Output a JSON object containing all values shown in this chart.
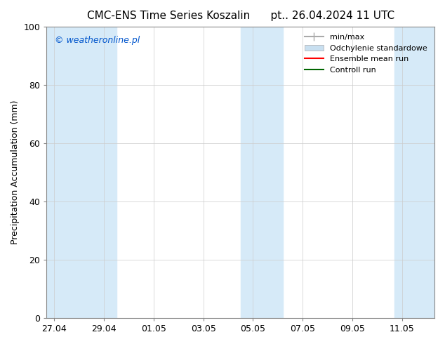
{
  "title": "CMC-ENS Time Series Koszalin      pt.. 26.04.2024 11 UTC",
  "ylabel": "Precipitation Accumulation (mm)",
  "ylim": [
    0,
    100
  ],
  "yticks": [
    0,
    20,
    40,
    60,
    80,
    100
  ],
  "background_color": "#ffffff",
  "plot_bg_color": "#ffffff",
  "watermark_text": "© weatheronline.pl",
  "watermark_color": "#0055cc",
  "legend_entries": [
    "min/max",
    "Odchylenie standardowe",
    "Ensemble mean run",
    "Controll run"
  ],
  "legend_colors": [
    "#aaaaaa",
    "#c8dff0",
    "#ff0000",
    "#006600"
  ],
  "shade_color": "#d6eaf8",
  "x_tick_labels": [
    "27.04",
    "29.04",
    "01.05",
    "03.05",
    "05.05",
    "07.05",
    "09.05",
    "11.05"
  ],
  "x_tick_positions": [
    0,
    2,
    4,
    6,
    8,
    10,
    12,
    14
  ],
  "shaded_regions": [
    {
      "xmin": -0.3,
      "xmax": 1.5,
      "color": "#d6eaf8"
    },
    {
      "xmin": 1.5,
      "xmax": 2.5,
      "color": "#d6eaf8"
    },
    {
      "xmin": 7.5,
      "xmax": 9.2,
      "color": "#d6eaf8"
    },
    {
      "xmin": 13.7,
      "xmax": 15.3,
      "color": "#d6eaf8"
    }
  ],
  "x_range": [
    0,
    15
  ]
}
